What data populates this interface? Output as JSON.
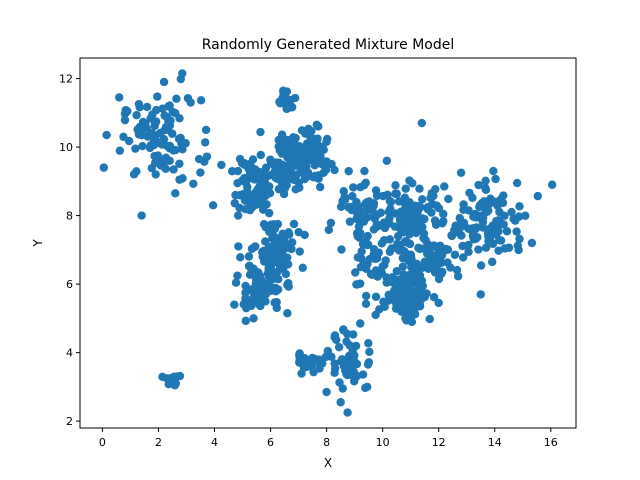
{
  "chart_data": {
    "type": "scatter",
    "title": "Randomly Generated Mixture Model",
    "xlabel": "X",
    "ylabel": "Y",
    "xlim": [
      -0.8,
      16.9
    ],
    "ylim": [
      1.8,
      12.6
    ],
    "xticks": [
      0,
      2,
      4,
      6,
      8,
      10,
      12,
      14,
      16
    ],
    "yticks": [
      2,
      4,
      6,
      8,
      10,
      12
    ],
    "grid": false,
    "legend": "none",
    "marker_color": "#1f77b4",
    "clusters": [
      {
        "cx": 2.1,
        "cy": 10.2,
        "sx": 0.7,
        "sy": 0.6,
        "n": 95
      },
      {
        "cx": 2.45,
        "cy": 3.2,
        "sx": 0.12,
        "sy": 0.1,
        "n": 15
      },
      {
        "cx": 6.6,
        "cy": 11.35,
        "sx": 0.15,
        "sy": 0.15,
        "n": 20
      },
      {
        "cx": 7.0,
        "cy": 9.7,
        "sx": 0.5,
        "sy": 0.45,
        "n": 150
      },
      {
        "cx": 5.4,
        "cy": 8.7,
        "sx": 0.4,
        "sy": 0.35,
        "n": 60
      },
      {
        "cx": 5.2,
        "cy": 9.3,
        "sx": 0.4,
        "sy": 0.2,
        "n": 20
      },
      {
        "cx": 6.2,
        "cy": 7.0,
        "sx": 0.35,
        "sy": 0.45,
        "n": 80
      },
      {
        "cx": 5.6,
        "cy": 5.9,
        "sx": 0.4,
        "sy": 0.4,
        "n": 90
      },
      {
        "cx": 7.4,
        "cy": 3.75,
        "sx": 0.25,
        "sy": 0.12,
        "n": 25
      },
      {
        "cx": 8.9,
        "cy": 3.7,
        "sx": 0.4,
        "sy": 0.45,
        "n": 50
      },
      {
        "cx": 9.1,
        "cy": 7.9,
        "sx": 0.55,
        "sy": 0.5,
        "n": 60
      },
      {
        "cx": 9.6,
        "cy": 6.5,
        "sx": 0.45,
        "sy": 0.45,
        "n": 40
      },
      {
        "cx": 11.0,
        "cy": 7.9,
        "sx": 0.55,
        "sy": 0.5,
        "n": 110
      },
      {
        "cx": 10.9,
        "cy": 5.7,
        "sx": 0.4,
        "sy": 0.4,
        "n": 90
      },
      {
        "cx": 11.8,
        "cy": 6.8,
        "sx": 0.5,
        "sy": 0.35,
        "n": 70
      },
      {
        "cx": 13.8,
        "cy": 7.7,
        "sx": 0.7,
        "sy": 0.5,
        "n": 110
      }
    ],
    "points": [
      [
        0.05,
        9.4
      ],
      [
        0.15,
        10.35
      ],
      [
        0.6,
        11.45
      ],
      [
        0.75,
        10.3
      ],
      [
        1.4,
        8.0
      ],
      [
        2.2,
        11.9
      ],
      [
        2.85,
        12.15
      ],
      [
        3.15,
        11.3
      ],
      [
        3.7,
        10.5
      ],
      [
        3.45,
        9.65
      ],
      [
        2.6,
        8.65
      ],
      [
        11.4,
        10.7
      ],
      [
        16.05,
        8.9
      ],
      [
        13.5,
        5.7
      ],
      [
        14.8,
        8.95
      ],
      [
        8.75,
        2.25
      ],
      [
        8.0,
        2.85
      ],
      [
        9.2,
        4.85
      ],
      [
        8.3,
        4.5
      ],
      [
        9.45,
        3.0
      ],
      [
        4.85,
        7.1
      ],
      [
        6.6,
        5.15
      ],
      [
        3.95,
        8.3
      ],
      [
        7.65,
        10.65
      ],
      [
        9.75,
        5.1
      ],
      [
        12.0,
        5.45
      ],
      [
        9.35,
        9.3
      ],
      [
        10.15,
        9.6
      ],
      [
        12.8,
        9.25
      ],
      [
        13.95,
        9.3
      ],
      [
        12.2,
        8.85
      ]
    ]
  }
}
